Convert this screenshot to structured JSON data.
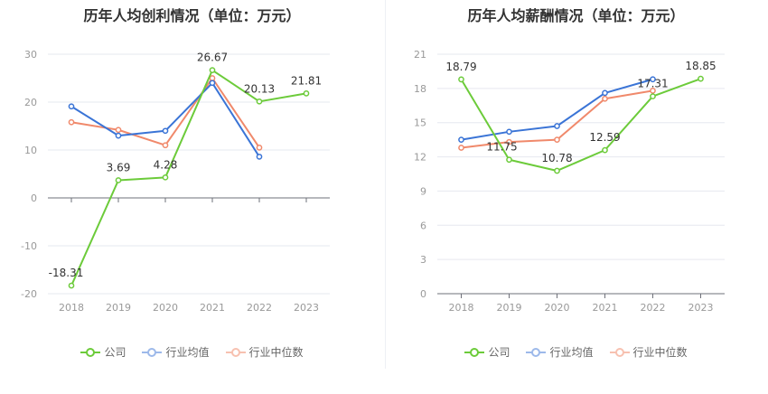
{
  "legend": [
    "公司",
    "行业均值",
    "行业中位数"
  ],
  "colors": {
    "company": "#6ccb3a",
    "avg": "#3a74d6",
    "median": "#f0896b"
  },
  "chart_data": [
    {
      "type": "line",
      "title": "历年人均创利情况（单位：万元）",
      "categories": [
        "2018",
        "2019",
        "2020",
        "2021",
        "2022",
        "2023"
      ],
      "ylim": [
        -20,
        30
      ],
      "yticks": [
        30,
        20,
        10,
        0,
        -10,
        -20
      ],
      "grid": true,
      "legend_position": "bottom",
      "series": [
        {
          "name": "公司",
          "values": [
            -18.31,
            3.69,
            4.28,
            26.67,
            20.13,
            21.81
          ],
          "labels": [
            "-18.31",
            "3.69",
            "4.28",
            "26.67",
            "20.13",
            "21.81"
          ]
        },
        {
          "name": "行业均值",
          "values": [
            19.1,
            13.0,
            14.0,
            24.0,
            8.6,
            null
          ]
        },
        {
          "name": "行业中位数",
          "values": [
            15.8,
            14.2,
            11.0,
            25.0,
            10.5,
            null
          ]
        }
      ]
    },
    {
      "type": "line",
      "title": "历年人均薪酬情况（单位：万元）",
      "categories": [
        "2018",
        "2019",
        "2020",
        "2021",
        "2022",
        "2023"
      ],
      "ylim": [
        0,
        21
      ],
      "yticks": [
        21,
        18,
        15,
        12,
        9,
        6,
        3,
        0
      ],
      "grid": true,
      "legend_position": "bottom",
      "series": [
        {
          "name": "公司",
          "values": [
            18.79,
            11.75,
            10.78,
            12.59,
            17.31,
            18.85
          ],
          "labels": [
            "18.79",
            "11.75",
            "10.78",
            "12.59",
            "17.31",
            "18.85"
          ]
        },
        {
          "name": "行业均值",
          "values": [
            13.5,
            14.2,
            14.7,
            17.6,
            18.8,
            null
          ]
        },
        {
          "name": "行业中位数",
          "values": [
            12.8,
            13.3,
            13.5,
            17.1,
            17.8,
            null
          ]
        }
      ]
    }
  ]
}
